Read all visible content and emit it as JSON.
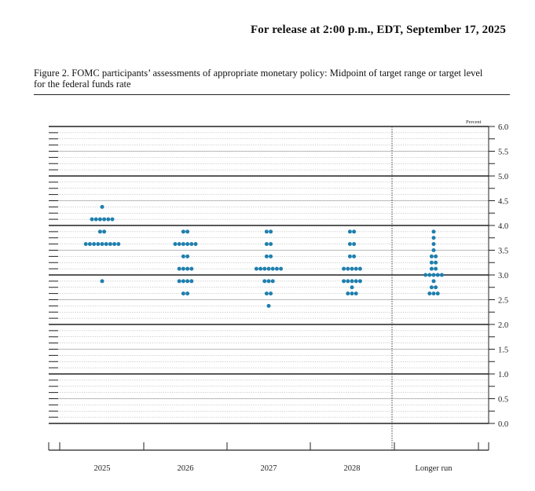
{
  "header": {
    "release": "For release at 2:00 p.m., EDT, September 17, 2025",
    "figure_title": "Figure 2. FOMC participants’ assessments of appropriate monetary policy: Midpoint of target range or target level for the federal funds rate"
  },
  "chart_data": {
    "type": "scatter",
    "title": "",
    "ylabel": "Percent",
    "ylim": [
      0.0,
      6.0
    ],
    "y_ticks": [
      "6.0",
      "5.5",
      "5.0",
      "4.5",
      "4.0",
      "3.5",
      "3.0",
      "2.5",
      "2.0",
      "1.5",
      "1.0",
      "0.5",
      "0.0"
    ],
    "categories": [
      "2025",
      "2026",
      "2027",
      "2028",
      "Longer run"
    ],
    "dot_color": "#1f7fae",
    "dots": {
      "2025": [
        {
          "y": 4.375,
          "n": 1
        },
        {
          "y": 4.125,
          "n": 6
        },
        {
          "y": 3.875,
          "n": 2
        },
        {
          "y": 3.625,
          "n": 9
        },
        {
          "y": 2.875,
          "n": 1
        }
      ],
      "2026": [
        {
          "y": 3.875,
          "n": 2
        },
        {
          "y": 3.625,
          "n": 6
        },
        {
          "y": 3.375,
          "n": 2
        },
        {
          "y": 3.125,
          "n": 4
        },
        {
          "y": 2.875,
          "n": 4
        },
        {
          "y": 2.625,
          "n": 2
        }
      ],
      "2027": [
        {
          "y": 3.875,
          "n": 2
        },
        {
          "y": 3.625,
          "n": 2
        },
        {
          "y": 3.375,
          "n": 2
        },
        {
          "y": 3.125,
          "n": 7
        },
        {
          "y": 2.875,
          "n": 3
        },
        {
          "y": 2.625,
          "n": 2
        },
        {
          "y": 2.375,
          "n": 1
        }
      ],
      "2028": [
        {
          "y": 3.875,
          "n": 2
        },
        {
          "y": 3.625,
          "n": 2
        },
        {
          "y": 3.375,
          "n": 2
        },
        {
          "y": 3.125,
          "n": 5
        },
        {
          "y": 2.875,
          "n": 5
        },
        {
          "y": 2.75,
          "n": 1
        },
        {
          "y": 2.625,
          "n": 3
        }
      ],
      "Longer run": [
        {
          "y": 3.875,
          "n": 1
        },
        {
          "y": 3.75,
          "n": 1
        },
        {
          "y": 3.625,
          "n": 1
        },
        {
          "y": 3.5,
          "n": 1
        },
        {
          "y": 3.375,
          "n": 2
        },
        {
          "y": 3.25,
          "n": 2
        },
        {
          "y": 3.125,
          "n": 2
        },
        {
          "y": 3.0,
          "n": 5
        },
        {
          "y": 2.875,
          "n": 1
        },
        {
          "y": 2.75,
          "n": 2
        },
        {
          "y": 2.625,
          "n": 3
        }
      ]
    }
  }
}
